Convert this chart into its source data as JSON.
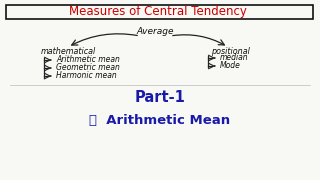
{
  "title": "Measures of Central Tendency",
  "title_color": "#cc0000",
  "bg_color": "#f8f8f4",
  "average_label": "Average",
  "math_label": "mathematical",
  "pos_label": "positional",
  "math_items": [
    "Arithmetic mean",
    "Geometric mean",
    "Harmonic mean"
  ],
  "pos_items": [
    "median",
    "Mode"
  ],
  "part_label": "Part-1",
  "part_color": "#1a1aaa",
  "bottom_label": "⎗  Arithmetic Mean",
  "bottom_color": "#1a1aaa",
  "arrow_color": "#222222",
  "text_color": "#111111",
  "box_color": "#111111"
}
